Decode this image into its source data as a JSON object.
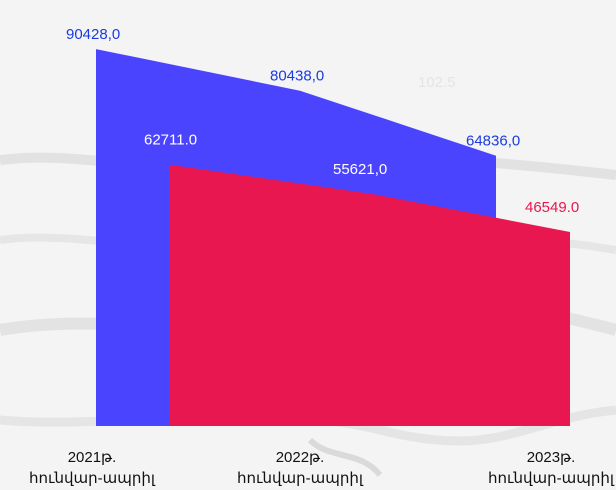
{
  "chart_data": {
    "type": "area",
    "categories": [
      [
        "2021թ.",
        "հունվար-ապրիլ"
      ],
      [
        "2022թ.",
        "հունվար-ապրիլ"
      ],
      [
        "2023թ.",
        "հունվար-ապրիլ"
      ]
    ],
    "series": [
      {
        "color": "#4b44ff",
        "label_color": "#1a3be0",
        "values": [
          90428.0,
          80438.0,
          64836.0
        ],
        "labels": [
          "90428,0",
          "80438,0",
          "64836,0"
        ]
      },
      {
        "color": "#e8174f",
        "label_color": "#ffffff",
        "last_label_color": "#e8174f",
        "values": [
          62711.0,
          55621.0,
          46549.0
        ],
        "labels": [
          "62711.0",
          "55621,0",
          "46549.0"
        ]
      }
    ],
    "annotation": {
      "text": "102.5",
      "color": "#e4e4e4"
    },
    "ylim": [
      0,
      95000
    ],
    "grid": false,
    "legend": "none"
  }
}
